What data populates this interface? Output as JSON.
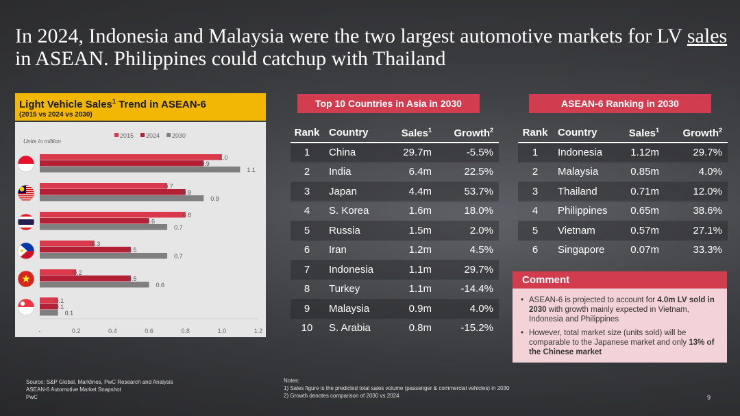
{
  "title_parts": {
    "a": "In 2024, Indonesia and Malaysia were the two largest automotive markets for LV ",
    "u": "sales",
    "b": " in ASEAN. Philippines could catchup with Thailand"
  },
  "left_panel": {
    "title": "Light Vehicle Sales",
    "title_sup": "1",
    "title_rest": " Trend in ASEAN-6",
    "subtitle": "(2015 vs 2024 vs 2030)",
    "units_note": "Units in million"
  },
  "colors": {
    "s2015": "#d9394b",
    "s2024": "#b32136",
    "s2030": "#7f7f7f",
    "accent": "#d23c4f",
    "header_yellow": "#f2b705"
  },
  "chart_data": {
    "type": "bar",
    "orientation": "horizontal",
    "categories": [
      "Indonesia flag",
      "Malaysia flag",
      "Thailand flag",
      "Philippines flag",
      "Vietnam flag",
      "Singapore flag"
    ],
    "category_icons": [
      "indonesia-flag-icon",
      "malaysia-flag-icon",
      "thailand-flag-icon",
      "philippines-flag-icon",
      "vietnam-flag-icon",
      "singapore-flag-icon"
    ],
    "series": [
      {
        "name": "2015",
        "values": [
          1.0,
          0.7,
          0.8,
          0.3,
          0.2,
          0.1
        ]
      },
      {
        "name": "2024",
        "values": [
          0.9,
          0.8,
          0.6,
          0.5,
          0.5,
          0.1
        ]
      },
      {
        "name": "2030",
        "values": [
          1.1,
          0.9,
          0.7,
          0.7,
          0.6,
          0.1
        ]
      }
    ],
    "data_labels": [
      [
        "1.0",
        "0.7",
        "0.8",
        "0.3",
        "0.2",
        "0.1"
      ],
      [
        "0.9",
        "0.8",
        "0.6",
        "0.5",
        "0.5",
        "0.1"
      ],
      [
        "1.1",
        "0.9",
        "0.7",
        "0.7",
        "0.6",
        "0.1"
      ]
    ],
    "xlim": [
      0,
      1.2
    ],
    "xticks": [
      "-",
      "0.2",
      "0.4",
      "0.6",
      "0.8",
      "1.0",
      "1.2"
    ],
    "legend": [
      "2015",
      "2024",
      "2030"
    ],
    "legend_position": "top",
    "grid": false
  },
  "top10": {
    "heading": "Top 10 Countries in Asia in 2030",
    "col_rank": "Rank",
    "col_country": "Country",
    "col_sales": "Sales",
    "col_growth": "Growth",
    "sup1": "1",
    "sup2": "2",
    "rows": [
      [
        "1",
        "China",
        "29.7m",
        "-5.5%"
      ],
      [
        "2",
        "India",
        "6.4m",
        "22.5%"
      ],
      [
        "3",
        "Japan",
        "4.4m",
        "53.7%"
      ],
      [
        "4",
        "S. Korea",
        "1.6m",
        "18.0%"
      ],
      [
        "5",
        "Russia",
        "1.5m",
        "2.0%"
      ],
      [
        "6",
        "Iran",
        "1.2m",
        "4.5%"
      ],
      [
        "7",
        "Indonesia",
        "1.1m",
        "29.7%"
      ],
      [
        "8",
        "Turkey",
        "1.1m",
        "-14.4%"
      ],
      [
        "9",
        "Malaysia",
        "0.9m",
        "4.0%"
      ],
      [
        "10",
        "S. Arabia",
        "0.8m",
        "-15.2%"
      ]
    ]
  },
  "asean": {
    "heading": "ASEAN-6 Ranking in 2030",
    "col_rank": "Rank",
    "col_country": "Country",
    "col_sales": "Sales",
    "col_growth": "Growth",
    "sup1": "1",
    "sup2": "2",
    "rows": [
      [
        "1",
        "Indonesia",
        "1.12m",
        "29.7%"
      ],
      [
        "2",
        "Malaysia",
        "0.85m",
        "4.0%"
      ],
      [
        "3",
        "Thailand",
        "0.71m",
        "12.0%"
      ],
      [
        "4",
        "Philippines",
        "0.65m",
        "38.6%"
      ],
      [
        "5",
        "Vietnam",
        "0.57m",
        "27.1%"
      ],
      [
        "6",
        "Singapore",
        "0.07m",
        "33.3%"
      ]
    ]
  },
  "comment": {
    "heading": "Comment",
    "b1_a": "ASEAN-6 is projected to account for ",
    "b1_bold": "4.0m LV sold in 2030",
    "b1_c": " with growth mainly expected in Vietnam, Indonesia and Philippines",
    "b2_a": "However, total market size (units sold) will be comparable to the Japanese market and only ",
    "b2_bold": "13% of the Chinese market"
  },
  "footer": {
    "source": "Source: S&P Global, Marklines, PwC Research and Analysis",
    "line2": "ASEAN-6 Automotive Market Snapshot",
    "line3": "PwC",
    "notes_title": "Notes:",
    "note1": "1) Sales figure is the predicted total sales volume (passenger & commercial vehicles) in 2030",
    "note2": "2) Growth denotes comparison of 2030 vs 2024",
    "page": "9"
  }
}
